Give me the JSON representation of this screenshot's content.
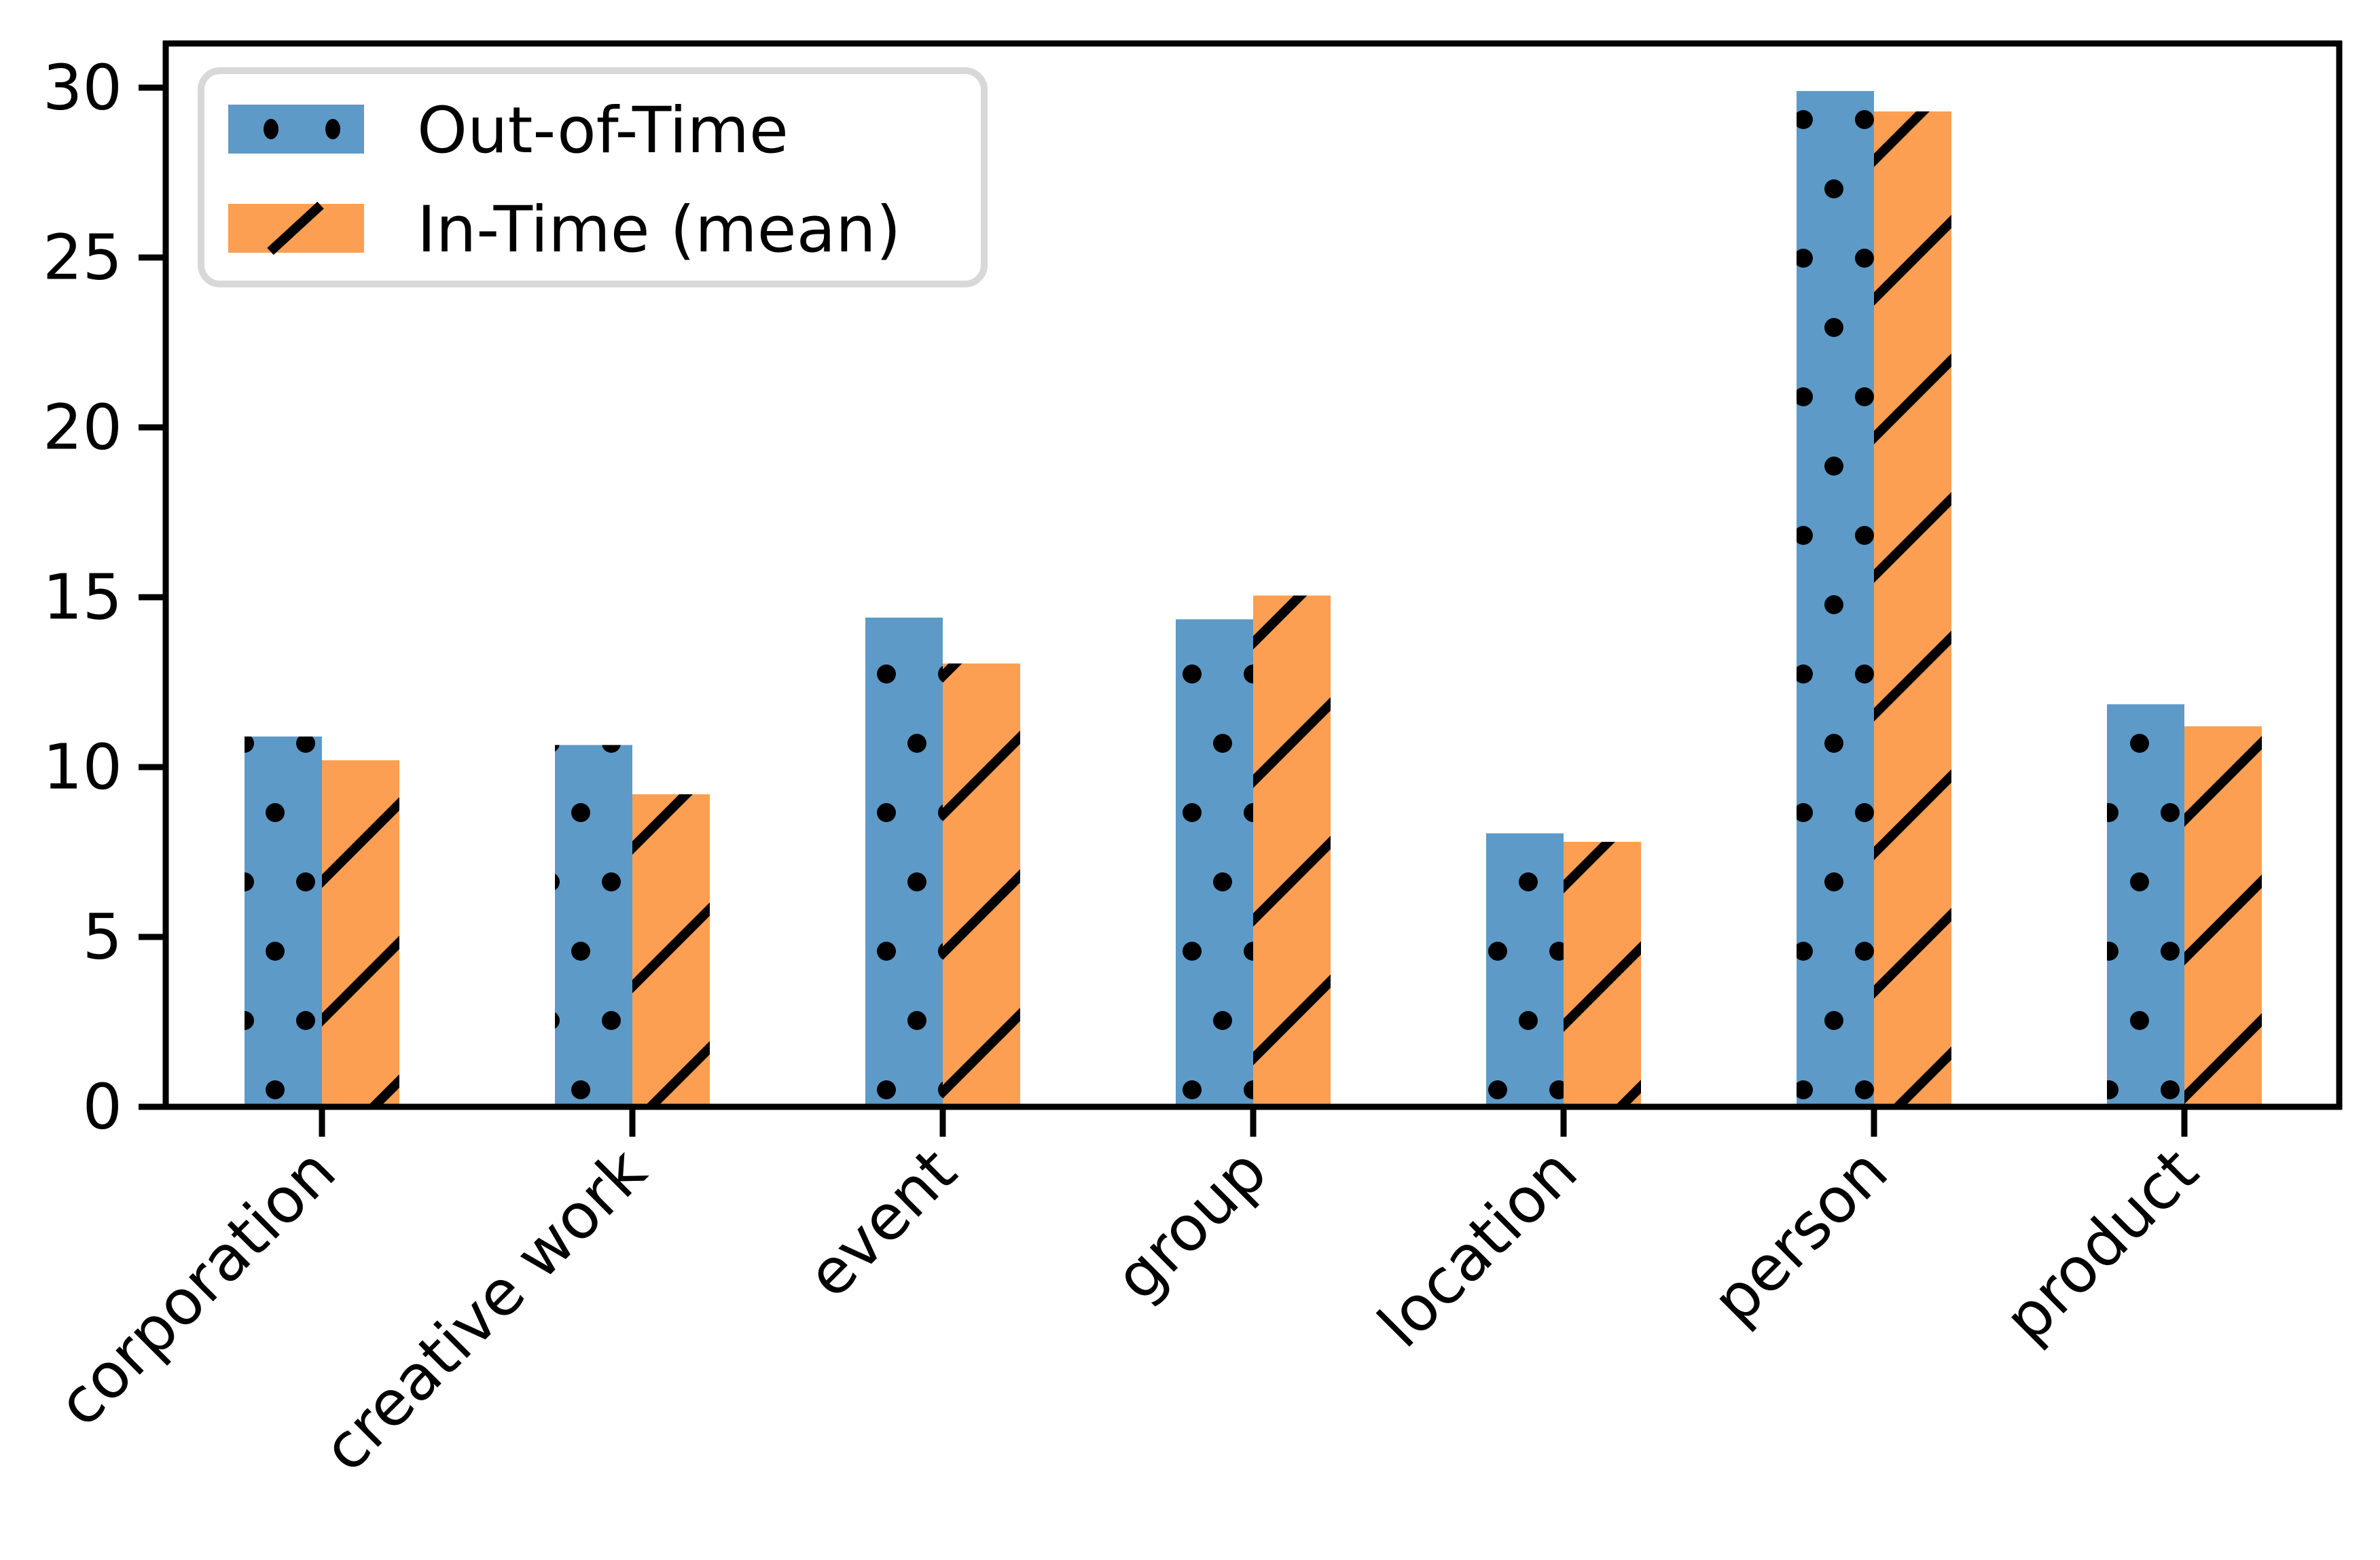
{
  "chart_data": {
    "type": "bar",
    "title": "",
    "xlabel": "",
    "ylabel": "",
    "categories": [
      "corporation",
      "creative work",
      "event",
      "group",
      "location",
      "person",
      "product"
    ],
    "series": [
      {
        "name": "Out-of-Time",
        "hatch": "dots",
        "color": "#5D9AC7",
        "values": [
          10.9,
          10.65,
          14.4,
          14.35,
          8.05,
          29.9,
          11.85
        ]
      },
      {
        "name": "In-Time (mean)",
        "hatch": "slash",
        "color": "#FC9F52",
        "values": [
          10.2,
          9.2,
          13.05,
          15.05,
          7.8,
          29.3,
          11.2
        ]
      }
    ],
    "y_ticks": [
      0,
      5,
      10,
      15,
      20,
      25,
      30
    ],
    "y_tick_labels": [
      "0",
      "5",
      "10",
      "15",
      "20",
      "25",
      "30"
    ],
    "ylim": [
      0,
      31.3
    ],
    "xlim": [
      -0.5,
      6.5
    ],
    "grid": false,
    "legend_position": "upper left"
  },
  "legend": {
    "items": [
      {
        "label": "Out-of-Time"
      },
      {
        "label": "In-Time (mean)"
      }
    ]
  },
  "colors": {
    "out_of_time_fill": "#5D9AC7",
    "in_time_fill": "#FC9F52",
    "hatch": "#000000",
    "spine": "#000000",
    "text": "#000000",
    "legend_border": "#D8D8D8",
    "background": "#FFFFFF"
  }
}
